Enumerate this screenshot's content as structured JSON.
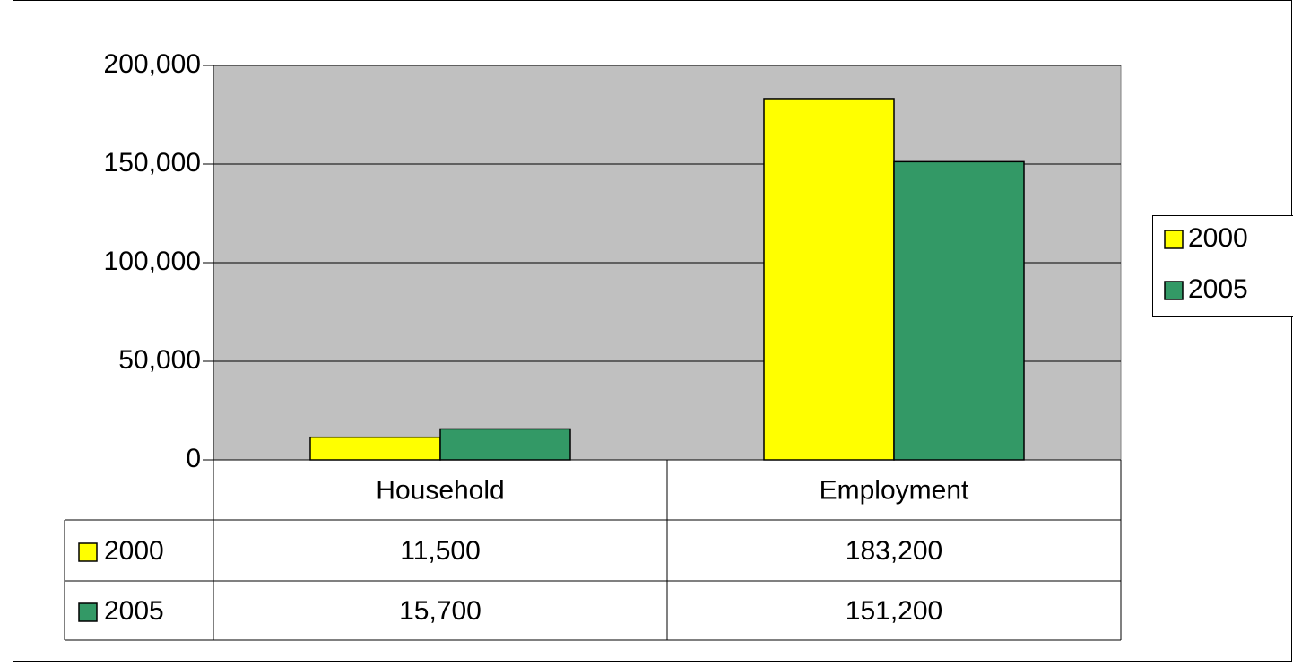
{
  "chart_data": {
    "type": "bar",
    "categories": [
      "Household",
      "Employment"
    ],
    "series": [
      {
        "name": "2000",
        "color": "#ffff00",
        "values": [
          11500,
          183200
        ],
        "value_labels": [
          "11,500",
          "183,200"
        ]
      },
      {
        "name": "2005",
        "color": "#339966",
        "values": [
          15700,
          151200
        ],
        "value_labels": [
          "15,700",
          "151,200"
        ]
      }
    ],
    "ylim": [
      0,
      200000
    ],
    "yticks": [
      0,
      {
        "value": 50000,
        "label": "50,000"
      },
      {
        "value": 100000,
        "label": "100,000"
      },
      {
        "value": 150000,
        "label": "150,000"
      },
      {
        "value": 200000,
        "label": "200,000"
      }
    ],
    "grid": true,
    "plot_background": "#c0c0c0",
    "legend": "right",
    "data_table": true
  }
}
